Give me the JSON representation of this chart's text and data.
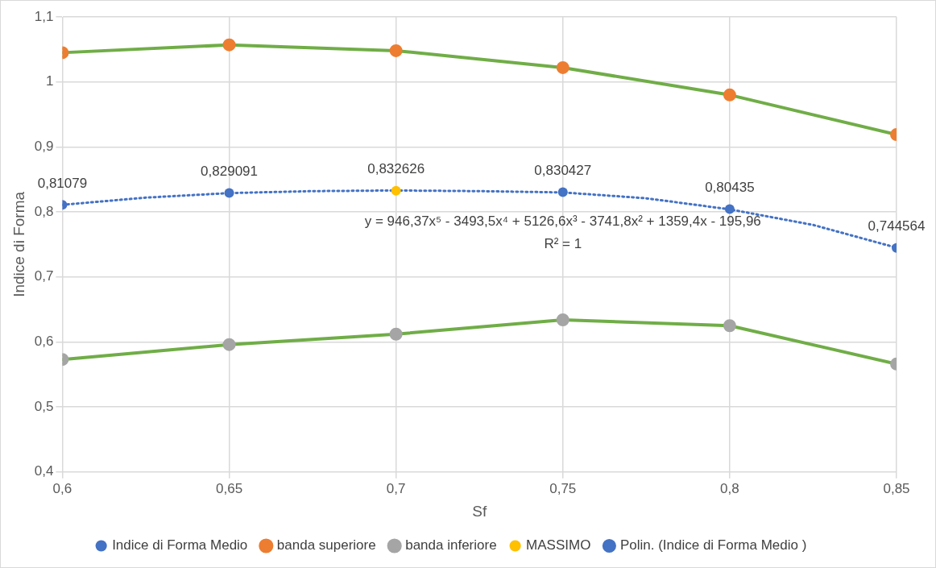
{
  "chart_data": {
    "type": "line",
    "xlabel": "Sf",
    "ylabel": "Indice di Forma",
    "x": [
      0.6,
      0.65,
      0.7,
      0.75,
      0.8,
      0.85
    ],
    "xlim": [
      0.6,
      0.85
    ],
    "xticks": [
      {
        "value": 0.6,
        "label": "0,6"
      },
      {
        "value": 0.65,
        "label": "0,65"
      },
      {
        "value": 0.7,
        "label": "0,7"
      },
      {
        "value": 0.75,
        "label": "0,75"
      },
      {
        "value": 0.8,
        "label": "0,8"
      },
      {
        "value": 0.85,
        "label": "0,85"
      }
    ],
    "ylim": [
      0.4,
      1.1
    ],
    "yticks": [
      {
        "value": 0.4,
        "label": "0,4"
      },
      {
        "value": 0.5,
        "label": "0,5"
      },
      {
        "value": 0.6,
        "label": "0,6"
      },
      {
        "value": 0.7,
        "label": "0,7"
      },
      {
        "value": 0.8,
        "label": "0,8"
      },
      {
        "value": 0.9,
        "label": "0,9"
      },
      {
        "value": 1,
        "label": "1"
      },
      {
        "value": 1.1,
        "label": "1,1"
      }
    ],
    "grid": true,
    "legend": "bottom",
    "marker": "circle",
    "series": [
      {
        "name": "Indice di Forma Medio",
        "type": "scatter",
        "color": "#4472c4",
        "values": [
          0.81079,
          0.829091,
          null,
          0.830427,
          0.80435,
          0.744564
        ],
        "value_labels": [
          "0,81079",
          "0,829091",
          null,
          "0,830427",
          "0,80435",
          "0,744564"
        ]
      },
      {
        "name": "banda superiore",
        "type": "line",
        "color": "#70ad47",
        "colors": [
          "#ed7d31",
          "#ed7d31",
          "#ed7d31",
          "#ed7d31",
          "#ed7d31",
          "#ed7d31"
        ],
        "values": [
          1.045,
          1.057,
          1.048,
          1.022,
          0.98,
          0.919
        ]
      },
      {
        "name": "banda inferiore",
        "type": "line",
        "color": "#70ad47",
        "colors": [
          "#a5a5a5",
          "#a5a5a5",
          "#a5a5a5",
          "#a5a5a5",
          "#a5a5a5",
          "#a5a5a5"
        ],
        "values": [
          0.573,
          0.596,
          0.612,
          0.634,
          0.625,
          0.566
        ]
      },
      {
        "name": "MASSIMO",
        "type": "scatter",
        "color": "#ffc000",
        "x": [
          0.7
        ],
        "values": [
          0.832626
        ],
        "value_labels": [
          "0,832626"
        ]
      },
      {
        "name": "Polin. (Indice di Forma Medio )",
        "type": "line",
        "marker": "none",
        "line_style": "dotted",
        "color": "#4472c4",
        "x": [
          0.6,
          0.625,
          0.65,
          0.675,
          0.7,
          0.725,
          0.75,
          0.775,
          0.8,
          0.825,
          0.85
        ],
        "values": [
          0.811,
          0.822,
          0.829,
          0.832,
          0.833,
          0.832,
          0.83,
          0.821,
          0.804,
          0.78,
          0.745
        ]
      }
    ],
    "annotations": [
      "y = 946,37x⁵ - 3493,5x⁴ + 5126,6x³ - 3741,8x² + 1359,4x - 195,96",
      "R² = 1"
    ]
  }
}
